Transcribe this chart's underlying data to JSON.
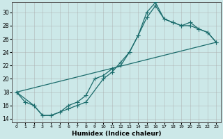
{
  "xlabel": "Humidex (Indice chaleur)",
  "bg_color": "#cce8e8",
  "grid_color": "#aacccc",
  "line_color": "#1a6b6b",
  "xlim": [
    -0.5,
    23.5
  ],
  "ylim": [
    13.5,
    31.5
  ],
  "xticks": [
    0,
    1,
    2,
    3,
    4,
    5,
    6,
    7,
    8,
    9,
    10,
    11,
    12,
    13,
    14,
    15,
    16,
    17,
    18,
    19,
    20,
    21,
    22,
    23
  ],
  "yticks": [
    14,
    16,
    18,
    20,
    22,
    24,
    26,
    28,
    30
  ],
  "line1_x": [
    0,
    1,
    2,
    3,
    4,
    5,
    6,
    7,
    8,
    9,
    10,
    11,
    12,
    13,
    14,
    15,
    16,
    17,
    18,
    19,
    20,
    21,
    22,
    23
  ],
  "line1_y": [
    18,
    16.5,
    16,
    14.5,
    14.5,
    15.0,
    16.0,
    16.5,
    17.5,
    20.0,
    20.5,
    21.5,
    22.0,
    24.0,
    26.5,
    29.2,
    31.0,
    29.0,
    28.5,
    28.0,
    28.0,
    27.5,
    27.0,
    25.5
  ],
  "line2_x": [
    0,
    2,
    3,
    4,
    6,
    7,
    8,
    10,
    11,
    12,
    13,
    14,
    15,
    16,
    17,
    18,
    19,
    20,
    21,
    22,
    23
  ],
  "line2_y": [
    18,
    16.0,
    14.5,
    14.5,
    15.5,
    16.0,
    16.5,
    20.0,
    21.0,
    22.5,
    24.0,
    26.5,
    30.0,
    31.5,
    29.0,
    28.5,
    28.0,
    28.5,
    27.5,
    27.0,
    25.5
  ],
  "line3_x": [
    0,
    23
  ],
  "line3_y": [
    18,
    25.5
  ]
}
